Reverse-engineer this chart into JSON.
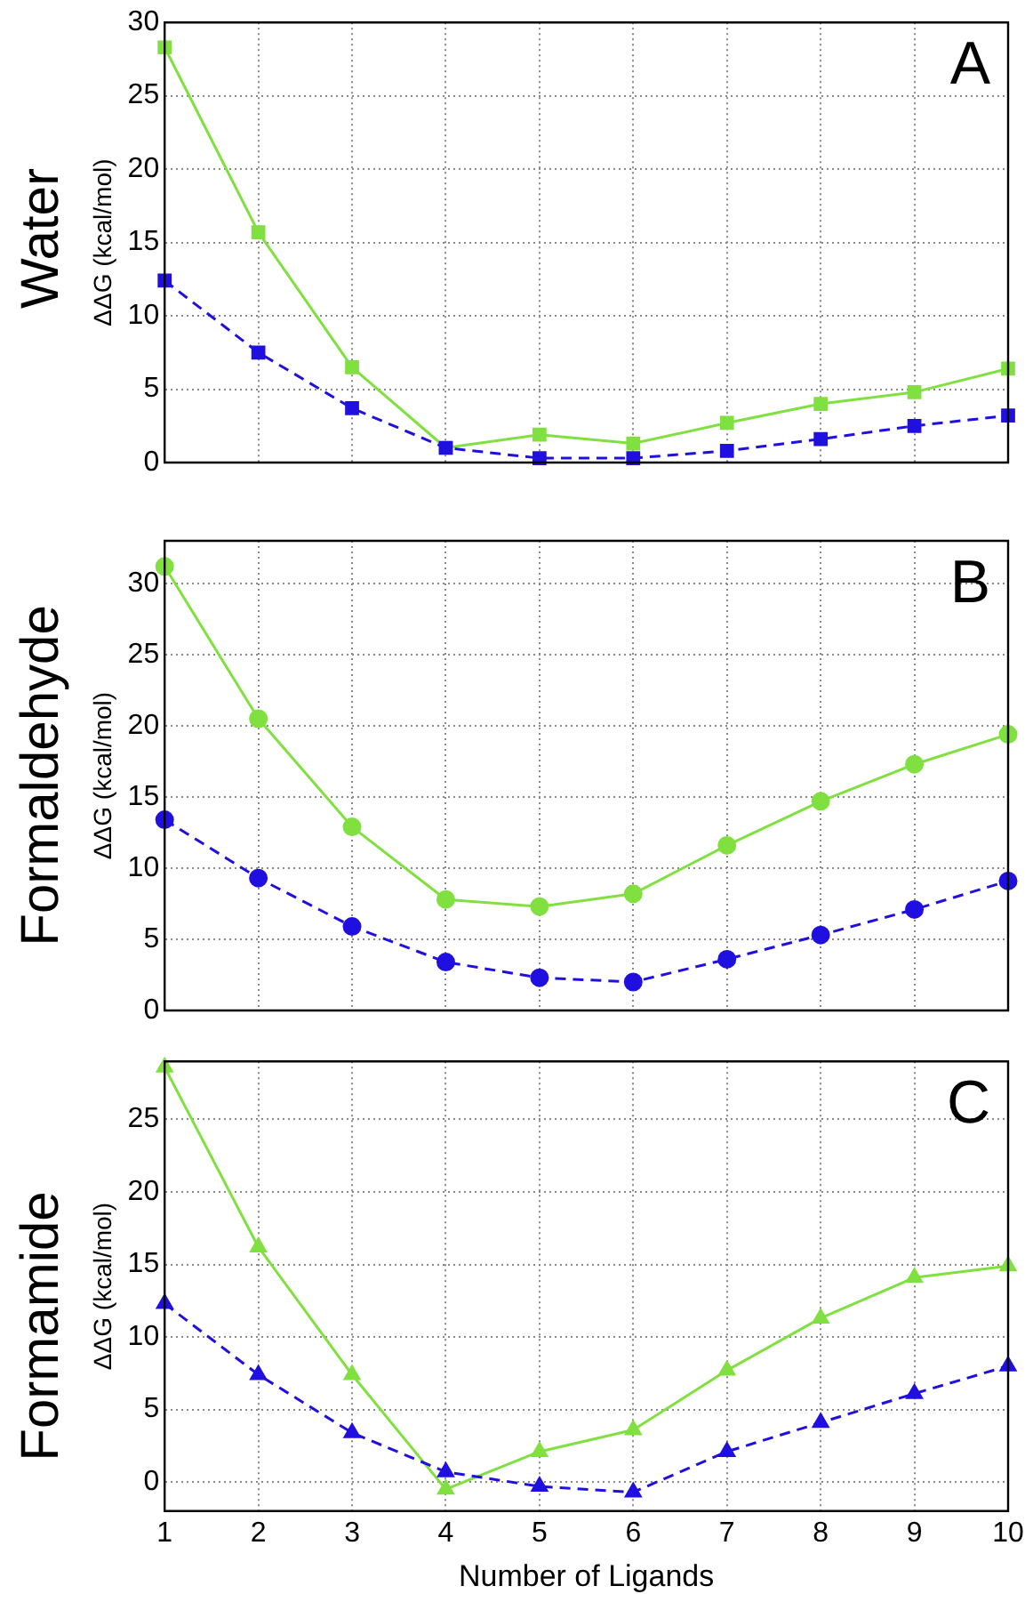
{
  "chart_data": [
    {
      "type": "line",
      "title": "Water",
      "ylabel": "ΔΔG (kcal/mol)",
      "annotations": [
        "A"
      ],
      "x": [
        1,
        2,
        3,
        4,
        5,
        6,
        7,
        8,
        9,
        10
      ],
      "marker": "square",
      "grid": true,
      "legend": false,
      "tick_labels": "y",
      "xlim": [
        1,
        10
      ],
      "xticks": [
        1,
        2,
        3,
        4,
        5,
        6,
        7,
        8,
        9,
        10
      ],
      "ylim": [
        0,
        30
      ],
      "yticks": [
        0,
        5,
        10,
        15,
        20,
        25,
        30
      ],
      "series": [
        {
          "color": "#80e040",
          "line_style": "solid",
          "values": [
            28.3,
            15.7,
            6.5,
            1.0,
            1.9,
            1.3,
            2.7,
            4.0,
            4.8,
            6.4
          ]
        },
        {
          "color": "#2010e0",
          "line_style": "dashed",
          "values": [
            12.4,
            7.5,
            3.7,
            1.0,
            0.3,
            0.3,
            0.8,
            1.6,
            2.5,
            3.2
          ]
        }
      ]
    },
    {
      "type": "line",
      "title": "Formaldehyde",
      "ylabel": "ΔΔG (kcal/mol)",
      "annotations": [
        "B"
      ],
      "x": [
        1,
        2,
        3,
        4,
        5,
        6,
        7,
        8,
        9,
        10
      ],
      "marker": "circle",
      "grid": true,
      "legend": false,
      "tick_labels": "y",
      "xlim": [
        1,
        10
      ],
      "xticks": [
        1,
        2,
        3,
        4,
        5,
        6,
        7,
        8,
        9,
        10
      ],
      "ylim": [
        0,
        33
      ],
      "yticks": [
        0,
        5,
        10,
        15,
        20,
        25,
        30
      ],
      "series": [
        {
          "color": "#80e040",
          "line_style": "solid",
          "values": [
            31.2,
            20.5,
            12.9,
            7.8,
            7.3,
            8.2,
            11.6,
            14.7,
            17.3,
            19.4
          ]
        },
        {
          "color": "#2010e0",
          "line_style": "dashed",
          "values": [
            13.4,
            9.3,
            5.9,
            3.4,
            2.3,
            2.0,
            3.6,
            5.3,
            7.1,
            9.1
          ]
        }
      ]
    },
    {
      "type": "line",
      "title": "Formamide",
      "ylabel": "ΔΔG (kcal/mol)",
      "xlabel": "Number of Ligands",
      "annotations": [
        "C"
      ],
      "x": [
        1,
        2,
        3,
        4,
        5,
        6,
        7,
        8,
        9,
        10
      ],
      "marker": "triangle",
      "grid": true,
      "legend": false,
      "xlim": [
        1,
        10
      ],
      "xticks": [
        1,
        2,
        3,
        4,
        5,
        6,
        7,
        8,
        9,
        10
      ],
      "ylim": [
        -2,
        29
      ],
      "yticks": [
        0,
        5,
        10,
        15,
        20,
        25
      ],
      "series": [
        {
          "color": "#80e040",
          "line_style": "solid",
          "values": [
            28.6,
            16.2,
            7.4,
            -0.5,
            2.1,
            3.6,
            7.7,
            11.3,
            14.1,
            14.9
          ]
        },
        {
          "color": "#2010e0",
          "line_style": "dashed",
          "values": [
            12.3,
            7.4,
            3.4,
            0.7,
            -0.3,
            -0.7,
            2.1,
            4.1,
            6.1,
            8.0
          ]
        }
      ]
    }
  ]
}
